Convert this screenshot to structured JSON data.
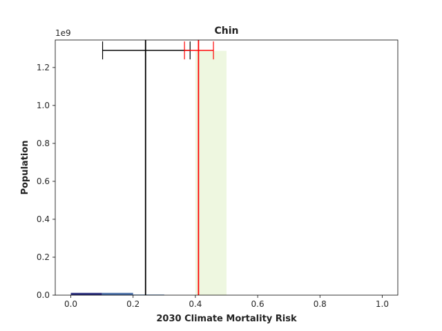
{
  "chart_data": {
    "type": "bar",
    "title": "Chin",
    "xlabel": "2030 Climate Mortality Risk",
    "ylabel": "Population",
    "y_offset_label": "1e9",
    "xlim": [
      -0.05,
      1.05
    ],
    "ylim": [
      0,
      1.345
    ],
    "x_ticks": [
      0.0,
      0.2,
      0.4,
      0.6,
      0.8,
      1.0
    ],
    "x_tick_labels": [
      "0.0",
      "0.2",
      "0.4",
      "0.6",
      "0.8",
      "1.0"
    ],
    "y_ticks": [
      0.0,
      0.2,
      0.4,
      0.6,
      0.8,
      1.0,
      1.2
    ],
    "y_tick_labels": [
      "0.0",
      "0.2",
      "0.4",
      "0.6",
      "0.8",
      "1.0",
      "1.2"
    ],
    "grid": false,
    "bars": [
      {
        "x0": 0.0,
        "x1": 0.1,
        "value": 0.012,
        "color": "#2b2f7e"
      },
      {
        "x0": 0.1,
        "x1": 0.2,
        "value": 0.012,
        "color": "#4a6fa8"
      },
      {
        "x0": 0.2,
        "x1": 0.3,
        "value": 0.003,
        "color": "#5b82b8"
      },
      {
        "x0": 0.4,
        "x1": 0.5,
        "value": 1.288,
        "color": "#eef7e0"
      }
    ],
    "reference_lines": [
      {
        "x": 0.24,
        "color": "#000000"
      },
      {
        "x": 0.41,
        "color": "#ff0000"
      }
    ],
    "error_bars": [
      {
        "center": 0.24,
        "low": 0.102,
        "high": 0.383,
        "y": 1.29,
        "color": "#000000"
      },
      {
        "center": 0.41,
        "low": 0.365,
        "high": 0.458,
        "y": 1.29,
        "color": "#ff0000"
      }
    ]
  }
}
